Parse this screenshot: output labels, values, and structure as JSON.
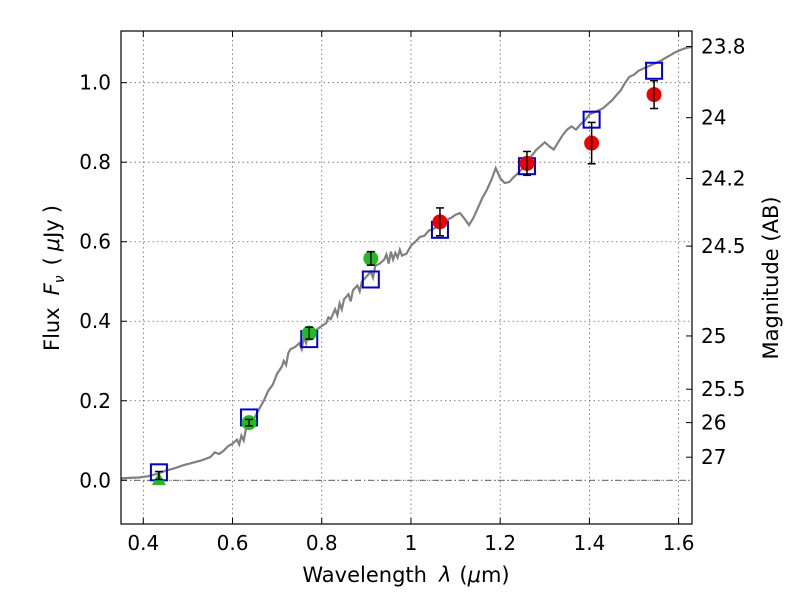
{
  "chart_data": {
    "type": "scatter",
    "xlabel_text": "Wavelength",
    "xlabel_symbol": "λ",
    "xlabel_unit_open": "(",
    "xlabel_unit_mu": "μ",
    "xlabel_unit_rest": "m)",
    "ylabel_text": "Flux",
    "ylabel_symbol": "F",
    "ylabel_sub": "ν",
    "ylabel_unit_open": "(",
    "ylabel_unit_mu": "μ",
    "ylabel_unit_rest": "Jy",
    "ylabel_unit_close": ")",
    "right_ylabel": "Magnitude (AB)",
    "xlim": [
      0.35,
      1.63
    ],
    "ylim": [
      -0.11,
      1.13
    ],
    "grid": true,
    "x_ticks": [
      {
        "v": 0.4,
        "label": "0.4"
      },
      {
        "v": 0.6,
        "label": "0.6"
      },
      {
        "v": 0.8,
        "label": "0.8"
      },
      {
        "v": 1.0,
        "label": "1"
      },
      {
        "v": 1.2,
        "label": "1.2"
      },
      {
        "v": 1.4,
        "label": "1.4"
      },
      {
        "v": 1.6,
        "label": "1.6"
      }
    ],
    "y_ticks": [
      {
        "v": 0.0,
        "label": "0.0"
      },
      {
        "v": 0.2,
        "label": "0.2"
      },
      {
        "v": 0.4,
        "label": "0.4"
      },
      {
        "v": 0.6,
        "label": "0.6"
      },
      {
        "v": 0.8,
        "label": "0.8"
      },
      {
        "v": 1.0,
        "label": "1.0"
      }
    ],
    "right_ticks": [
      {
        "flux": 1.091,
        "label": "23.8"
      },
      {
        "flux": 0.912,
        "label": "24"
      },
      {
        "flux": 0.759,
        "label": "24.2"
      },
      {
        "flux": 0.589,
        "label": "24.5"
      },
      {
        "flux": 0.363,
        "label": "25"
      },
      {
        "flux": 0.229,
        "label": "25.5"
      },
      {
        "flux": 0.145,
        "label": "26"
      },
      {
        "flux": 0.058,
        "label": "27"
      }
    ],
    "series": [
      {
        "kind": "line",
        "color": "#808080",
        "points": [
          [
            0.35,
            0.005
          ],
          [
            0.37,
            0.006
          ],
          [
            0.39,
            0.007
          ],
          [
            0.41,
            0.01
          ],
          [
            0.43,
            0.016
          ],
          [
            0.45,
            0.024
          ],
          [
            0.47,
            0.03
          ],
          [
            0.49,
            0.038
          ],
          [
            0.51,
            0.044
          ],
          [
            0.53,
            0.05
          ],
          [
            0.55,
            0.058
          ],
          [
            0.56,
            0.07
          ],
          [
            0.57,
            0.066
          ],
          [
            0.58,
            0.074
          ],
          [
            0.59,
            0.086
          ],
          [
            0.6,
            0.092
          ],
          [
            0.61,
            0.102
          ],
          [
            0.615,
            0.09
          ],
          [
            0.62,
            0.112
          ],
          [
            0.625,
            0.1
          ],
          [
            0.63,
            0.128
          ],
          [
            0.64,
            0.14
          ],
          [
            0.65,
            0.158
          ],
          [
            0.66,
            0.18
          ],
          [
            0.67,
            0.2
          ],
          [
            0.68,
            0.225
          ],
          [
            0.69,
            0.24
          ],
          [
            0.7,
            0.268
          ],
          [
            0.71,
            0.285
          ],
          [
            0.715,
            0.3
          ],
          [
            0.72,
            0.29
          ],
          [
            0.725,
            0.32
          ],
          [
            0.73,
            0.33
          ],
          [
            0.74,
            0.335
          ],
          [
            0.75,
            0.345
          ],
          [
            0.755,
            0.33
          ],
          [
            0.76,
            0.36
          ],
          [
            0.765,
            0.345
          ],
          [
            0.77,
            0.37
          ],
          [
            0.78,
            0.372
          ],
          [
            0.79,
            0.38
          ],
          [
            0.8,
            0.388
          ],
          [
            0.81,
            0.395
          ],
          [
            0.815,
            0.41
          ],
          [
            0.82,
            0.405
          ],
          [
            0.83,
            0.43
          ],
          [
            0.835,
            0.415
          ],
          [
            0.84,
            0.445
          ],
          [
            0.845,
            0.43
          ],
          [
            0.85,
            0.455
          ],
          [
            0.86,
            0.468
          ],
          [
            0.865,
            0.45
          ],
          [
            0.87,
            0.478
          ],
          [
            0.88,
            0.49
          ],
          [
            0.885,
            0.475
          ],
          [
            0.89,
            0.5
          ],
          [
            0.9,
            0.512
          ],
          [
            0.91,
            0.525
          ],
          [
            0.915,
            0.51
          ],
          [
            0.92,
            0.54
          ],
          [
            0.93,
            0.545
          ],
          [
            0.94,
            0.555
          ],
          [
            0.945,
            0.568
          ],
          [
            0.95,
            0.545
          ],
          [
            0.955,
            0.575
          ],
          [
            0.96,
            0.555
          ],
          [
            0.965,
            0.572
          ],
          [
            0.97,
            0.56
          ],
          [
            0.975,
            0.58
          ],
          [
            0.98,
            0.565
          ],
          [
            0.99,
            0.57
          ],
          [
            1.0,
            0.59
          ],
          [
            1.01,
            0.6
          ],
          [
            1.02,
            0.612
          ],
          [
            1.03,
            0.615
          ],
          [
            1.04,
            0.628
          ],
          [
            1.05,
            0.632
          ],
          [
            1.06,
            0.64
          ],
          [
            1.07,
            0.645
          ],
          [
            1.08,
            0.655
          ],
          [
            1.09,
            0.66
          ],
          [
            1.1,
            0.668
          ],
          [
            1.11,
            0.672
          ],
          [
            1.12,
            0.658
          ],
          [
            1.13,
            0.642
          ],
          [
            1.14,
            0.66
          ],
          [
            1.15,
            0.685
          ],
          [
            1.16,
            0.71
          ],
          [
            1.17,
            0.73
          ],
          [
            1.18,
            0.755
          ],
          [
            1.19,
            0.785
          ],
          [
            1.2,
            0.76
          ],
          [
            1.21,
            0.748
          ],
          [
            1.22,
            0.75
          ],
          [
            1.23,
            0.762
          ],
          [
            1.24,
            0.772
          ],
          [
            1.25,
            0.785
          ],
          [
            1.26,
            0.8
          ],
          [
            1.27,
            0.815
          ],
          [
            1.28,
            0.83
          ],
          [
            1.29,
            0.84
          ],
          [
            1.3,
            0.85
          ],
          [
            1.31,
            0.84
          ],
          [
            1.32,
            0.832
          ],
          [
            1.33,
            0.85
          ],
          [
            1.34,
            0.868
          ],
          [
            1.35,
            0.882
          ],
          [
            1.36,
            0.89
          ],
          [
            1.37,
            0.882
          ],
          [
            1.38,
            0.895
          ],
          [
            1.39,
            0.905
          ],
          [
            1.4,
            0.92
          ],
          [
            1.41,
            0.925
          ],
          [
            1.42,
            0.93
          ],
          [
            1.43,
            0.935
          ],
          [
            1.44,
            0.945
          ],
          [
            1.45,
            0.955
          ],
          [
            1.46,
            0.968
          ],
          [
            1.47,
            0.98
          ],
          [
            1.48,
            1.0
          ],
          [
            1.49,
            1.015
          ],
          [
            1.5,
            1.02
          ],
          [
            1.51,
            1.03
          ],
          [
            1.52,
            1.035
          ],
          [
            1.53,
            1.04
          ],
          [
            1.54,
            1.045
          ],
          [
            1.55,
            1.05
          ],
          [
            1.56,
            1.055
          ],
          [
            1.57,
            1.062
          ],
          [
            1.58,
            1.068
          ],
          [
            1.59,
            1.075
          ],
          [
            1.6,
            1.08
          ],
          [
            1.61,
            1.085
          ],
          [
            1.62,
            1.088
          ],
          [
            1.63,
            1.09
          ]
        ]
      },
      {
        "kind": "open-square",
        "color": "#0000cc",
        "points": [
          [
            0.435,
            0.02
          ],
          [
            0.637,
            0.158
          ],
          [
            0.772,
            0.355
          ],
          [
            0.91,
            0.505
          ],
          [
            1.065,
            0.63
          ],
          [
            1.26,
            0.79
          ],
          [
            1.405,
            0.907
          ],
          [
            1.545,
            1.03
          ]
        ]
      },
      {
        "kind": "filled-circle",
        "color": "#22bb22",
        "points": [
          [
            0.637,
            0.145,
            0.008
          ],
          [
            0.772,
            0.37,
            0.015
          ],
          [
            0.91,
            0.558,
            0.017
          ]
        ]
      },
      {
        "kind": "filled-triangle",
        "color": "#22bb22",
        "points": [
          [
            0.435,
            0.003,
            0.0
          ]
        ]
      },
      {
        "kind": "filled-circle",
        "color": "#ee0000",
        "points": [
          [
            1.065,
            0.65,
            0.035
          ],
          [
            1.26,
            0.797,
            0.03
          ],
          [
            1.405,
            0.848,
            0.052
          ],
          [
            1.545,
            0.97,
            0.035
          ]
        ]
      },
      {
        "kind": "errorbar-only",
        "color": "#000000",
        "points": [
          [
            0.435,
            0.012,
            0.01
          ]
        ]
      }
    ]
  }
}
